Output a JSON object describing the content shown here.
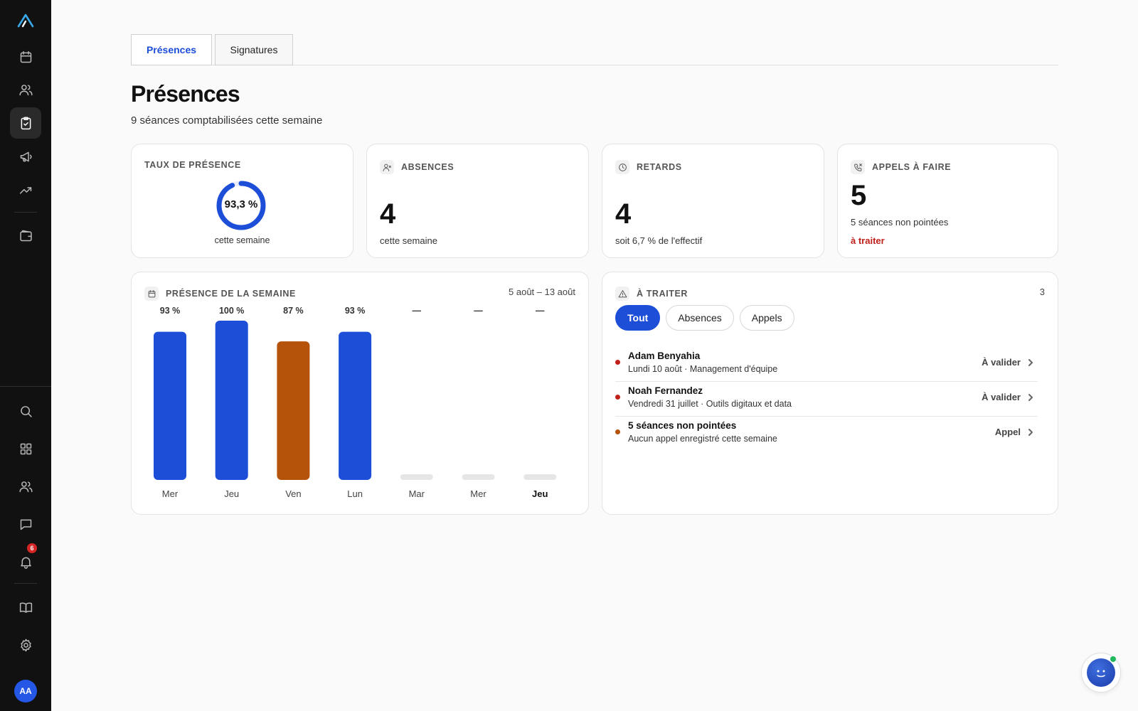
{
  "tabs": [
    {
      "label": "Présences",
      "active": true
    },
    {
      "label": "Signatures",
      "active": false
    }
  ],
  "page": {
    "title": "Présences",
    "subtitle": "9 séances comptabilisées cette semaine"
  },
  "stats": {
    "rate": {
      "label": "TAUX DE PRÉSENCE",
      "value": "93,3 %",
      "fraction": 0.933,
      "note": "cette semaine"
    },
    "absences": {
      "label": "ABSENCES",
      "value": "4",
      "note": "cette semaine"
    },
    "delays": {
      "label": "RETARDS",
      "value": "4",
      "note": "soit 6,7 % de l'effectif"
    },
    "calls": {
      "label": "APPELS À FAIRE",
      "value": "5",
      "note": "5 séances non pointées",
      "alert": "à traiter"
    }
  },
  "week": {
    "title": "PRÉSENCE DE LA SEMAINE",
    "range": "5 août – 13 août"
  },
  "chart_data": {
    "type": "bar",
    "title": "PRÉSENCE DE LA SEMAINE",
    "categories": [
      "Mer",
      "Jeu",
      "Ven",
      "Lun",
      "Mar",
      "Mer",
      "Jeu"
    ],
    "values": [
      93,
      100,
      87,
      93,
      null,
      null,
      null
    ],
    "labels": [
      "93 %",
      "100 %",
      "87 %",
      "93 %",
      "—",
      "—",
      "—"
    ],
    "colors": [
      "#1d4ed8",
      "#1d4ed8",
      "#b5530b",
      "#1d4ed8",
      "#e6e6e6",
      "#e6e6e6",
      "#e6e6e6"
    ],
    "highlight_index": 6,
    "ylim": [
      0,
      100
    ]
  },
  "todo": {
    "title": "À TRAITER",
    "count": "3",
    "filters": [
      {
        "label": "Tout",
        "active": true
      },
      {
        "label": "Absences",
        "active": false
      },
      {
        "label": "Appels",
        "active": false
      }
    ],
    "items": [
      {
        "title": "Adam Benyahia",
        "sub": "Lundi 10 août · Management d'équipe",
        "action": "À valider",
        "color": "#c0201a"
      },
      {
        "title": "Noah Fernandez",
        "sub": "Vendredi 31 juillet · Outils digitaux et data",
        "action": "À valider",
        "color": "#c0201a"
      },
      {
        "title": "5 séances non pointées",
        "sub": "Aucun appel enregistré cette semaine",
        "action": "Appel",
        "color": "#b5530b"
      }
    ]
  },
  "sidebar": {
    "badge": "6",
    "avatar": "AA",
    "icons": [
      "logo-icon",
      "calendar-icon",
      "users-icon",
      "clipboard-check-icon",
      "megaphone-icon",
      "trending-up-icon",
      "wallet-icon",
      "search-icon",
      "grid-icon",
      "team-icon",
      "chat-icon",
      "bell-icon",
      "book-icon",
      "gear-icon"
    ]
  }
}
